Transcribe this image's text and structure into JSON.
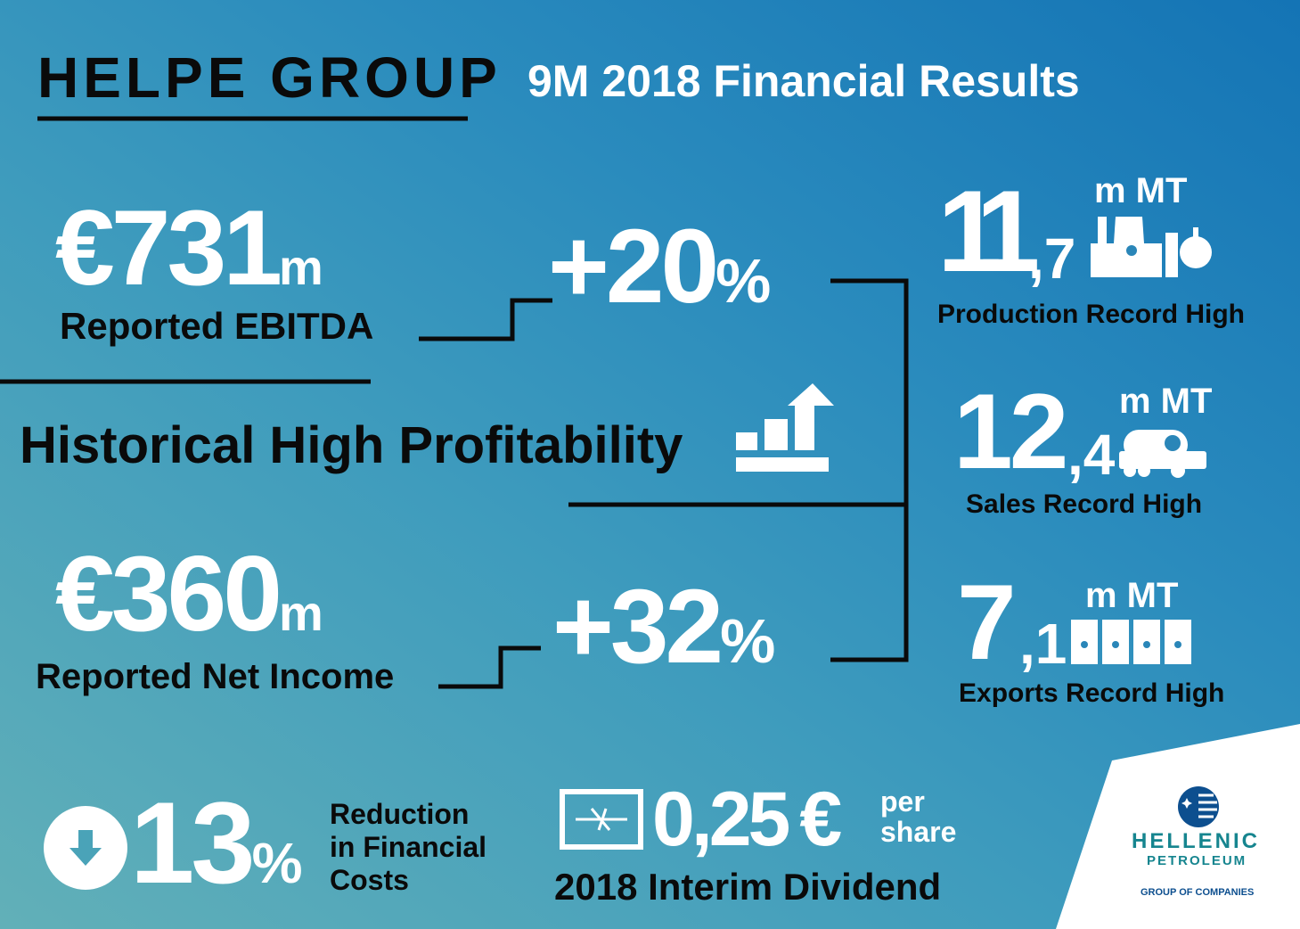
{
  "header": {
    "title": "HELPE GROUP",
    "subtitle": "9M 2018 Financial Results"
  },
  "ebitda": {
    "currency": "€",
    "value": "731",
    "unit": "m",
    "label": "Reported EBITDA",
    "change": "+20",
    "pct": "%"
  },
  "headline": "Historical High Profitability",
  "net_income": {
    "currency": "€",
    "value": "360",
    "unit": "m",
    "label": "Reported Net Income",
    "change": "+32",
    "pct": "%"
  },
  "production": {
    "value": "11",
    "decimal": ",7",
    "unit": "m MT",
    "label": "Production Record High"
  },
  "sales": {
    "value": "12",
    "decimal": ",4",
    "unit": "m MT",
    "label": "Sales Record High"
  },
  "exports": {
    "value": "7",
    "decimal": ",1",
    "unit": "m MT",
    "label": "Exports Record High"
  },
  "financial_costs": {
    "value": "13",
    "pct": "%",
    "label_lines": [
      "Reduction",
      "in Financial",
      "Costs"
    ]
  },
  "dividend": {
    "value": "0,25",
    "currency": "€",
    "per": "per",
    "share": "share",
    "label": "2018 Interim Dividend"
  },
  "logo": {
    "line1": "HELLENIC",
    "line2": "PETROLEUM",
    "line3": "GROUP OF COMPANIES"
  },
  "colors": {
    "bg_start": "#62b0b8",
    "bg_end": "#1474b5",
    "logo_blue": "#0d4f8f",
    "logo_teal": "#16858f"
  }
}
